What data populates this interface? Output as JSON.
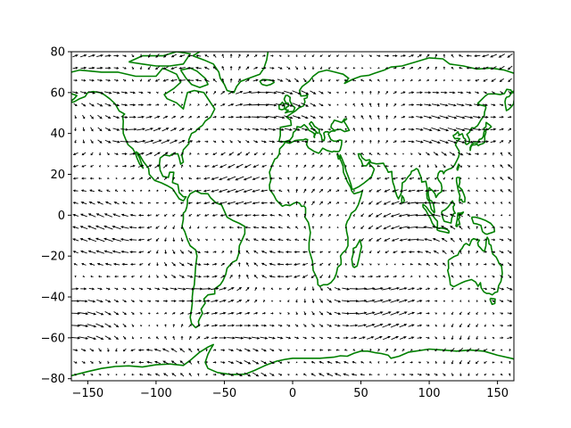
{
  "map": {
    "type": "quiver",
    "axes": {
      "xlim": [
        -162,
        162
      ],
      "ylim": [
        -81,
        80
      ],
      "xticks": [
        -150,
        -100,
        -50,
        0,
        50,
        100,
        150
      ],
      "yticks": [
        -80,
        -60,
        -40,
        -20,
        0,
        20,
        40,
        60,
        80
      ],
      "xtick_labels": [
        "−150",
        "−100",
        "−50",
        "0",
        "50",
        "100",
        "150"
      ],
      "ytick_labels": [
        "−80",
        "−60",
        "−40",
        "−20",
        "0",
        "20",
        "40",
        "60",
        "80"
      ]
    },
    "coastline_color": "#008000",
    "vector_color": "#000000",
    "vector_grid": {
      "lon_step": 6,
      "lat_step": 6
    }
  }
}
